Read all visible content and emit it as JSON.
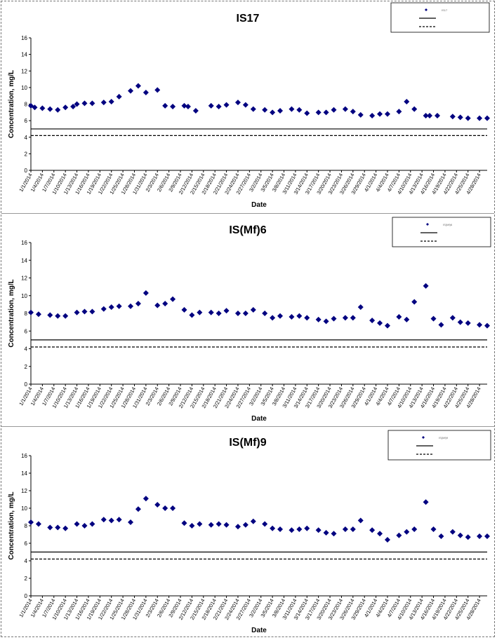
{
  "chart_data": [
    {
      "type": "scatter",
      "title": "IS17",
      "xlabel": "Date",
      "ylabel": "Concentration, mg/L",
      "ylim": [
        0,
        16
      ],
      "yticks": [
        "0",
        "2",
        "4",
        "6",
        "8",
        "10",
        "12",
        "14",
        "16"
      ],
      "xticks": [
        "1/1/2014",
        "1/4/2014",
        "1/7/2014",
        "1/10/2014",
        "1/13/2014",
        "1/16/2014",
        "1/19/2014",
        "1/22/2014",
        "1/25/2014",
        "1/28/2014",
        "1/31/2014",
        "2/3/2014",
        "2/6/2014",
        "2/9/2014",
        "2/12/2014",
        "2/15/2014",
        "2/18/2014",
        "2/21/2014",
        "2/24/2014",
        "2/27/2014",
        "3/2/2014",
        "3/5/2014",
        "3/8/2014",
        "3/11/2014",
        "3/14/2014",
        "3/17/2014",
        "3/20/2014",
        "3/23/2014",
        "3/26/2014",
        "3/29/2014",
        "4/1/2014",
        "4/4/2014",
        "4/7/2014",
        "4/10/2014",
        "4/13/2014",
        "4/16/2014",
        "4/19/2014",
        "4/22/2014",
        "4/25/2014",
        "4/28/2014"
      ],
      "x_range": [
        "1/1/2014",
        "4/30/2014"
      ],
      "legend_position": "top-right",
      "legend": [
        "IS17",
        "",
        ""
      ],
      "reference_lines": [
        {
          "style": "solid",
          "value": 5.0
        },
        {
          "style": "dashed",
          "value": 4.2
        }
      ],
      "series": [
        {
          "name": "IS17",
          "color": "#000080",
          "x": [
            "1/1/2014",
            "1/2/2014",
            "1/4/2014",
            "1/6/2014",
            "1/8/2014",
            "1/10/2014",
            "1/12/2014",
            "1/13/2014",
            "1/15/2014",
            "1/17/2014",
            "1/20/2014",
            "1/22/2014",
            "1/24/2014",
            "1/27/2014",
            "1/29/2014",
            "1/31/2014",
            "2/3/2014",
            "2/5/2014",
            "2/7/2014",
            "2/10/2014",
            "2/11/2014",
            "2/13/2014",
            "2/17/2014",
            "2/19/2014",
            "2/21/2014",
            "2/24/2014",
            "2/26/2014",
            "2/28/2014",
            "3/3/2014",
            "3/5/2014",
            "3/7/2014",
            "3/10/2014",
            "3/12/2014",
            "3/14/2014",
            "3/17/2014",
            "3/19/2014",
            "3/21/2014",
            "3/24/2014",
            "3/26/2014",
            "3/28/2014",
            "3/31/2014",
            "4/2/2014",
            "4/4/2014",
            "4/7/2014",
            "4/9/2014",
            "4/11/2014",
            "4/14/2014",
            "4/15/2014",
            "4/17/2014",
            "4/21/2014",
            "4/23/2014",
            "4/25/2014",
            "4/28/2014",
            "4/30/2014"
          ],
          "y": [
            7.8,
            7.6,
            7.5,
            7.4,
            7.3,
            7.6,
            7.7,
            8.0,
            8.1,
            8.1,
            8.2,
            8.3,
            8.9,
            9.6,
            10.2,
            9.4,
            9.7,
            7.8,
            7.7,
            7.8,
            7.7,
            7.2,
            7.8,
            7.7,
            7.9,
            8.2,
            7.9,
            7.4,
            7.3,
            7.0,
            7.2,
            7.4,
            7.3,
            6.9,
            7.0,
            7.0,
            7.3,
            7.4,
            7.1,
            6.7,
            6.6,
            6.8,
            6.8,
            7.1,
            8.3,
            7.4,
            6.6,
            6.6,
            6.6,
            6.5,
            6.4,
            6.3,
            6.3,
            6.3
          ]
        }
      ]
    },
    {
      "type": "scatter",
      "title": "IS(Mf)6",
      "xlabel": "Date",
      "ylabel": "Concentration, mg/L",
      "ylim": [
        0,
        16
      ],
      "yticks": [
        "0",
        "2",
        "4",
        "6",
        "8",
        "10",
        "12",
        "14",
        "16"
      ],
      "xticks": [
        "1/1/2014",
        "1/4/2014",
        "1/7/2014",
        "1/10/2014",
        "1/13/2014",
        "1/16/2014",
        "1/19/2014",
        "1/22/2014",
        "1/25/2014",
        "1/28/2014",
        "1/31/2014",
        "2/3/2014",
        "2/6/2014",
        "2/9/2014",
        "2/12/2014",
        "2/15/2014",
        "2/18/2014",
        "2/21/2014",
        "2/24/2014",
        "2/27/2014",
        "3/2/2014",
        "3/5/2014",
        "3/8/2014",
        "3/11/2014",
        "3/14/2014",
        "3/17/2014",
        "3/20/2014",
        "3/23/2014",
        "3/26/2014",
        "3/29/2014",
        "4/1/2014",
        "4/4/2014",
        "4/7/2014",
        "4/10/2014",
        "4/13/2014",
        "4/16/2014",
        "4/19/2014",
        "4/22/2014",
        "4/25/2014",
        "4/28/2014"
      ],
      "x_range": [
        "1/1/2014",
        "4/30/2014"
      ],
      "legend_position": "top-right",
      "legend": [
        "IS(Mf)6",
        "",
        ""
      ],
      "reference_lines": [
        {
          "style": "solid",
          "value": 5.0
        },
        {
          "style": "dashed",
          "value": 4.2
        }
      ],
      "series": [
        {
          "name": "IS(Mf)6",
          "color": "#000080",
          "x": [
            "1/1/2014",
            "1/3/2014",
            "1/6/2014",
            "1/8/2014",
            "1/10/2014",
            "1/13/2014",
            "1/15/2014",
            "1/17/2014",
            "1/20/2014",
            "1/22/2014",
            "1/24/2014",
            "1/27/2014",
            "1/29/2014",
            "1/31/2014",
            "2/3/2014",
            "2/5/2014",
            "2/7/2014",
            "2/10/2014",
            "2/12/2014",
            "2/14/2014",
            "2/17/2014",
            "2/19/2014",
            "2/21/2014",
            "2/24/2014",
            "2/26/2014",
            "2/28/2014",
            "3/3/2014",
            "3/5/2014",
            "3/7/2014",
            "3/10/2014",
            "3/12/2014",
            "3/14/2014",
            "3/17/2014",
            "3/19/2014",
            "3/21/2014",
            "3/24/2014",
            "3/26/2014",
            "3/28/2014",
            "3/31/2014",
            "4/2/2014",
            "4/4/2014",
            "4/7/2014",
            "4/9/2014",
            "4/11/2014",
            "4/14/2014",
            "4/16/2014",
            "4/18/2014",
            "4/21/2014",
            "4/23/2014",
            "4/25/2014",
            "4/28/2014",
            "4/30/2014"
          ],
          "y": [
            8.1,
            7.9,
            7.8,
            7.7,
            7.7,
            8.1,
            8.2,
            8.2,
            8.5,
            8.7,
            8.8,
            8.8,
            9.1,
            10.3,
            8.9,
            9.1,
            9.6,
            8.4,
            7.8,
            8.1,
            8.1,
            8.0,
            8.3,
            8.0,
            8.0,
            8.4,
            8.0,
            7.5,
            7.7,
            7.6,
            7.7,
            7.5,
            7.3,
            7.1,
            7.4,
            7.5,
            7.5,
            8.7,
            7.2,
            6.9,
            6.6,
            7.6,
            7.3,
            9.3,
            11.1,
            7.4,
            6.7,
            7.5,
            7.0,
            6.9,
            6.7,
            6.6
          ]
        }
      ]
    },
    {
      "type": "scatter",
      "title": "IS(Mf)9",
      "xlabel": "Date",
      "ylabel": "Concentration, mg/L",
      "ylim": [
        0,
        16
      ],
      "yticks": [
        "0",
        "2",
        "4",
        "6",
        "8",
        "10",
        "12",
        "14",
        "16"
      ],
      "xticks": [
        "1/1/2014",
        "1/4/2014",
        "1/7/2014",
        "1/10/2014",
        "1/13/2014",
        "1/16/2014",
        "1/19/2014",
        "1/22/2014",
        "1/25/2014",
        "1/28/2014",
        "1/31/2014",
        "2/3/2014",
        "2/6/2014",
        "2/9/2014",
        "2/12/2014",
        "2/15/2014",
        "2/18/2014",
        "2/21/2014",
        "2/24/2014",
        "2/27/2014",
        "3/2/2014",
        "3/5/2014",
        "3/8/2014",
        "3/11/2014",
        "3/14/2014",
        "3/17/2014",
        "3/20/2014",
        "3/23/2014",
        "3/26/2014",
        "3/29/2014",
        "4/1/2014",
        "4/4/2014",
        "4/7/2014",
        "4/10/2014",
        "4/13/2014",
        "4/16/2014",
        "4/19/2014",
        "4/22/2014",
        "4/25/2014",
        "4/28/2014"
      ],
      "x_range": [
        "1/1/2014",
        "4/30/2014"
      ],
      "legend_position": "top-right",
      "legend": [
        "IS(Mf)9",
        "",
        ""
      ],
      "reference_lines": [
        {
          "style": "solid",
          "value": 5.0
        },
        {
          "style": "dashed",
          "value": 4.2
        }
      ],
      "series": [
        {
          "name": "IS(Mf)9",
          "color": "#000080",
          "x": [
            "1/1/2014",
            "1/3/2014",
            "1/6/2014",
            "1/8/2014",
            "1/10/2014",
            "1/13/2014",
            "1/15/2014",
            "1/17/2014",
            "1/20/2014",
            "1/22/2014",
            "1/24/2014",
            "1/27/2014",
            "1/29/2014",
            "1/31/2014",
            "2/3/2014",
            "2/5/2014",
            "2/7/2014",
            "2/10/2014",
            "2/12/2014",
            "2/14/2014",
            "2/17/2014",
            "2/19/2014",
            "2/21/2014",
            "2/24/2014",
            "2/26/2014",
            "2/28/2014",
            "3/3/2014",
            "3/5/2014",
            "3/7/2014",
            "3/10/2014",
            "3/12/2014",
            "3/14/2014",
            "3/17/2014",
            "3/19/2014",
            "3/21/2014",
            "3/24/2014",
            "3/26/2014",
            "3/28/2014",
            "3/31/2014",
            "4/2/2014",
            "4/4/2014",
            "4/7/2014",
            "4/9/2014",
            "4/11/2014",
            "4/14/2014",
            "4/16/2014",
            "4/18/2014",
            "4/21/2014",
            "4/23/2014",
            "4/25/2014",
            "4/28/2014",
            "4/30/2014"
          ],
          "y": [
            8.4,
            8.2,
            7.8,
            7.8,
            7.7,
            8.2,
            8.0,
            8.2,
            8.7,
            8.6,
            8.7,
            8.4,
            9.9,
            11.1,
            10.4,
            10.0,
            10.0,
            8.3,
            8.0,
            8.2,
            8.1,
            8.2,
            8.1,
            7.9,
            8.1,
            8.5,
            8.2,
            7.7,
            7.6,
            7.5,
            7.6,
            7.7,
            7.5,
            7.2,
            7.1,
            7.6,
            7.6,
            8.6,
            7.5,
            7.1,
            6.4,
            6.9,
            7.3,
            7.6,
            10.7,
            7.6,
            6.8,
            7.3,
            6.9,
            6.7,
            6.8,
            6.8
          ]
        }
      ]
    }
  ]
}
